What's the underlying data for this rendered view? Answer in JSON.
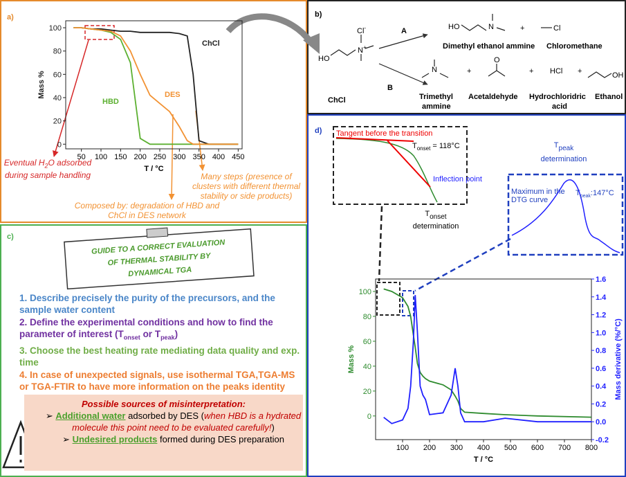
{
  "panel_a": {
    "label": "a)",
    "water": [
      "Eventual H",
      "2",
      "O adsorbed during sample handling"
    ],
    "composed": "Composed by: degradation of HBD and ChCl in DES network",
    "steps": "Many steps (presence of clusters with different thermal stability or side products)"
  },
  "panel_b": {
    "label": "b)",
    "ho": "HO",
    "cl": "Cl",
    "minus": "-",
    "n": "N",
    "plus_charge": "+",
    "reactant": "ChCl",
    "path_a": "A",
    "path_b": "B",
    "plus": "+",
    "hcl": "HCl",
    "o": "O",
    "oh": "OH",
    "names": {
      "dimethyl": "Dimethyl ethanol ammine",
      "chloromethane": "Chloromethane",
      "trimethyl": [
        "Trimethyl",
        "ammine"
      ],
      "acetaldehyde": "Acetaldehyde",
      "acid": [
        "Hydrochloridric",
        "acid"
      ],
      "ethanol": "Ethanol"
    }
  },
  "panel_c": {
    "label": "c)",
    "sign": [
      "GUIDE TO A CORRECT EVALUATION",
      "OF THERMAL STABILITY BY",
      "DYNAMICAL TGA"
    ],
    "items": [
      "1. Describe precisely the purity of the precursors, and the sample water content",
      [
        "2. Define the experimental conditions and how to find the parameter of interest  (T",
        "onset",
        " or T",
        "peak",
        ")"
      ],
      "3. Choose the best heating rate mediating data quality and exp. time",
      "4. In case of unexpected signals,  use isothermal TGA,TGA-MS  or TGA-FTIR to have more information on the peaks identity"
    ],
    "box": {
      "title": "Possible sources of misinterpretation:",
      "bullet": "➢",
      "first": [
        "Additional water",
        " adsorbed by DES (",
        "when HBD is a hydrated molecule this point need to be evaluated carefully!",
        ")"
      ],
      "second": [
        "Undesired products",
        " formed during DES preparation"
      ]
    }
  },
  "panel_d": {
    "label": "d)",
    "tangent": "Tangent before the transition",
    "onset_value": [
      "T",
      "onset",
      " = 118°C"
    ],
    "inflection": "Inflection point",
    "onset_title": [
      "T",
      "onset",
      "determination"
    ],
    "peak_title": [
      "T",
      "peak",
      "determination"
    ],
    "maximum": [
      "Maximum in the",
      "DTG curve"
    ],
    "peak_value": [
      "T",
      "peak",
      ":147°C"
    ]
  },
  "chart_data": [
    {
      "type": "line",
      "ylabel": "Mass %",
      "xlabel": "T / °C",
      "x": [
        30,
        50,
        75,
        100,
        125,
        150,
        175,
        200,
        225,
        250,
        275,
        300,
        320,
        335,
        350,
        375,
        400,
        450
      ],
      "xlim": [
        10,
        460
      ],
      "ylim": [
        -4,
        106
      ],
      "xticks": [
        50,
        100,
        150,
        200,
        250,
        300,
        350,
        400,
        450
      ],
      "yticks": [
        0,
        20,
        40,
        60,
        80,
        100
      ],
      "series": [
        {
          "name": "ChCl",
          "color": "#222222",
          "values": [
            100,
            100,
            99,
            99,
            98,
            97,
            97,
            96,
            96,
            96,
            96,
            95,
            93,
            60,
            3,
            0,
            0,
            0
          ]
        },
        {
          "name": "HBD",
          "color": "#5cb031",
          "values": [
            100,
            100,
            99,
            98,
            96,
            90,
            70,
            5,
            0,
            0,
            0,
            0,
            0,
            0,
            0,
            0,
            0,
            0
          ]
        },
        {
          "name": "DES",
          "color": "#f29233",
          "values": [
            100,
            100,
            99,
            98,
            97,
            93,
            80,
            60,
            42,
            35,
            28,
            15,
            3,
            0,
            0,
            0,
            0,
            0
          ]
        }
      ]
    },
    {
      "type": "line",
      "ylabel": "Mass %",
      "y2label": "Mass derivative (%/°C)",
      "xlabel": "T / °C",
      "x": [
        30,
        60,
        100,
        120,
        130,
        140,
        147,
        155,
        165,
        175,
        185,
        200,
        250,
        280,
        295,
        305,
        315,
        330,
        400,
        480,
        600,
        800
      ],
      "xlim": [
        0,
        800
      ],
      "ylim": [
        -19,
        110
      ],
      "y2lim": [
        -0.2,
        1.6
      ],
      "xticks": [
        100,
        200,
        300,
        400,
        500,
        600,
        700,
        800
      ],
      "yticks": [
        0,
        20,
        40,
        60,
        80,
        100
      ],
      "y2ticks": [
        -0.2,
        {
          "value": 0,
          "label": "0.0"
        },
        0.2,
        0.4,
        0.6,
        0.8,
        {
          "value": 1,
          "label": "1.0"
        },
        1.2,
        1.4,
        1.6
      ],
      "series": [
        {
          "color": "#2e8b2e",
          "values": [
            102,
            100,
            95,
            88,
            80,
            65,
            55,
            42,
            35,
            32,
            30,
            28,
            25,
            21,
            16,
            12,
            6,
            3,
            2,
            1,
            0,
            -1
          ]
        },
        {
          "color": "#1f1fff",
          "axis": "y2",
          "values": [
            0.05,
            -0.02,
            0.02,
            0.15,
            0.4,
            0.9,
            1.42,
            1.0,
            0.4,
            0.3,
            0.25,
            0.08,
            0.1,
            0.3,
            0.6,
            0.4,
            0.1,
            0.0,
            0.0,
            0.04,
            0.0,
            0.0
          ]
        }
      ]
    }
  ]
}
